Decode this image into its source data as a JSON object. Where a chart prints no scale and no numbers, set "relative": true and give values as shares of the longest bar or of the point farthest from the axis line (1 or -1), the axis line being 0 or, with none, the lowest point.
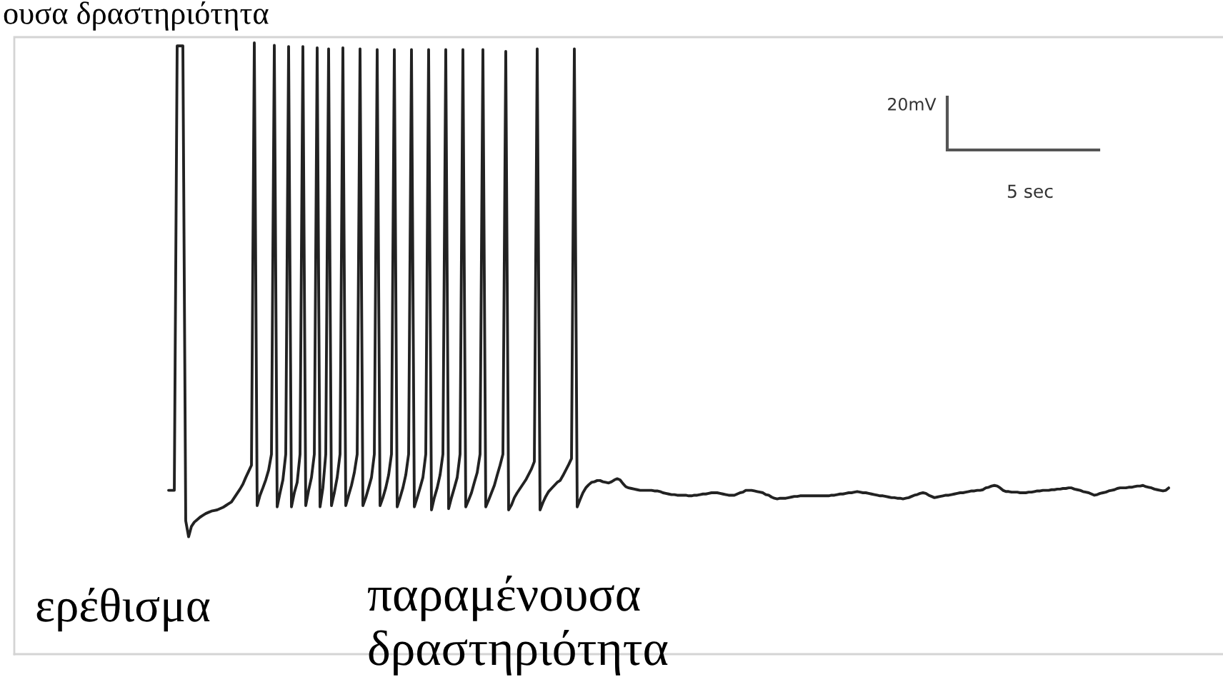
{
  "chart_data": {
    "type": "line",
    "relative": true,
    "categories": [
      null,
      null,
      null,
      null,
      null,
      null,
      null,
      null,
      null,
      null,
      null,
      null,
      null,
      null,
      null,
      null,
      null,
      null,
      null,
      null,
      null,
      null,
      null,
      null,
      null,
      null,
      null,
      null,
      null,
      null,
      null,
      null,
      null,
      null,
      null,
      null,
      null,
      null,
      null,
      null,
      null,
      null,
      null,
      null,
      null,
      null,
      null,
      null,
      null,
      null,
      null,
      null,
      null,
      null,
      null,
      null,
      null,
      null,
      null,
      null,
      null,
      null,
      null,
      null,
      null,
      null,
      null,
      null,
      null,
      null,
      null,
      null,
      null,
      null,
      null,
      null,
      null,
      null,
      null,
      null,
      null,
      null,
      null,
      null,
      null,
      null,
      null,
      null,
      null,
      null,
      null,
      null,
      null,
      null,
      null,
      null,
      null,
      null,
      null,
      null,
      null,
      null,
      null,
      null,
      null,
      null,
      null,
      null,
      null,
      null,
      null,
      null,
      null,
      null,
      null,
      null,
      null,
      null,
      null,
      null,
      null,
      null,
      null,
      null,
      null,
      null,
      null,
      null,
      null,
      null,
      null,
      null,
      null,
      null,
      null,
      null,
      null,
      null,
      null,
      null,
      null,
      null,
      null,
      null,
      null,
      null,
      null,
      null,
      null,
      null,
      null,
      null,
      null,
      null,
      null,
      null,
      null,
      null,
      null,
      null,
      null,
      null,
      null,
      null,
      null,
      null,
      null,
      null,
      null,
      null,
      null,
      null,
      null,
      null,
      null,
      null,
      null,
      null,
      null,
      null,
      null,
      null,
      null,
      null,
      null,
      null,
      null,
      null,
      null,
      null,
      null,
      null,
      null,
      null,
      null,
      null,
      null,
      null,
      null,
      null,
      null,
      null,
      null,
      null,
      null,
      null,
      null,
      null,
      null,
      null,
      null,
      null,
      null,
      null,
      null,
      null,
      null,
      null,
      null,
      null,
      null,
      null,
      null,
      null,
      null,
      null,
      null,
      null,
      null,
      null,
      null,
      null,
      null,
      null,
      null,
      null,
      null,
      null,
      null,
      null,
      null,
      null,
      null,
      null,
      null,
      null,
      null,
      null,
      null,
      null,
      null,
      null,
      null,
      null,
      null,
      null,
      null,
      null,
      null,
      null,
      null,
      null,
      null,
      null,
      null,
      null,
      null,
      null,
      null,
      null,
      null,
      null,
      null,
      null,
      null,
      null,
      null,
      null,
      null,
      null,
      null,
      null,
      null,
      null,
      null,
      null,
      null,
      null,
      null,
      null,
      null,
      null,
      null,
      null,
      null,
      null,
      null,
      null,
      null,
      null,
      null,
      null,
      null,
      null,
      null,
      null,
      null,
      null,
      null,
      null,
      null,
      null,
      null,
      null,
      null,
      null,
      null,
      null,
      null,
      null,
      null,
      null,
      null,
      null,
      null,
      null,
      null,
      null,
      null,
      null,
      null,
      null,
      null,
      null,
      null,
      null,
      null,
      null,
      null,
      null,
      null,
      null,
      null,
      null,
      null,
      null,
      null,
      null,
      null,
      null,
      null
    ],
    "series": [
      {
        "color": "#222222",
        "values": [
          0.268,
          0.268,
          0.268,
          0.995,
          0.995,
          0.995,
          0.218,
          0.192,
          0.209,
          0.216,
          0.22,
          0.224,
          0.227,
          0.23,
          0.232,
          0.234,
          0.235,
          0.236,
          0.238,
          0.24,
          0.243,
          0.246,
          0.249,
          0.256,
          0.263,
          0.27,
          0.278,
          0.289,
          0.299,
          0.309,
          1.0,
          0.243,
          0.26,
          0.272,
          0.285,
          0.301,
          0.327,
          0.996,
          0.241,
          0.264,
          0.285,
          0.327,
          0.994,
          0.241,
          0.264,
          0.281,
          0.327,
          0.994,
          0.243,
          0.268,
          0.289,
          0.327,
          0.992,
          0.241,
          0.272,
          0.327,
          0.99,
          0.243,
          0.264,
          0.289,
          0.327,
          0.992,
          0.243,
          0.26,
          0.276,
          0.297,
          0.327,
          0.99,
          0.243,
          0.256,
          0.272,
          0.289,
          0.327,
          0.989,
          0.243,
          0.256,
          0.272,
          0.293,
          0.327,
          0.989,
          0.241,
          0.256,
          0.272,
          0.293,
          0.327,
          0.989,
          0.241,
          0.256,
          0.272,
          0.289,
          0.327,
          0.989,
          0.236,
          0.256,
          0.272,
          0.293,
          0.327,
          0.989,
          0.238,
          0.256,
          0.272,
          0.289,
          0.327,
          0.989,
          0.241,
          0.252,
          0.264,
          0.281,
          0.297,
          0.327,
          0.989,
          0.241,
          0.252,
          0.264,
          0.276,
          0.293,
          0.309,
          0.327,
          0.986,
          0.236,
          0.244,
          0.256,
          0.264,
          0.271,
          0.278,
          0.285,
          0.294,
          0.303,
          0.315,
          0.99,
          0.236,
          0.248,
          0.258,
          0.266,
          0.271,
          0.276,
          0.281,
          0.284,
          0.292,
          0.301,
          0.31,
          0.32,
          0.99,
          0.241,
          0.253,
          0.264,
          0.272,
          0.277,
          0.281,
          0.282,
          0.284,
          0.284,
          0.282,
          0.281,
          0.28,
          0.282,
          0.285,
          0.287,
          0.285,
          0.279,
          0.274,
          0.272,
          0.271,
          0.27,
          0.269,
          0.268,
          0.268,
          0.268,
          0.268,
          0.268,
          0.267,
          0.267,
          0.266,
          0.264,
          0.263,
          0.262,
          0.261,
          0.261,
          0.26,
          0.26,
          0.26,
          0.26,
          0.259,
          0.259,
          0.26,
          0.26,
          0.261,
          0.262,
          0.262,
          0.263,
          0.264,
          0.264,
          0.264,
          0.263,
          0.262,
          0.261,
          0.26,
          0.26,
          0.26,
          0.262,
          0.264,
          0.265,
          0.268,
          0.268,
          0.268,
          0.267,
          0.266,
          0.265,
          0.264,
          0.261,
          0.26,
          0.257,
          0.255,
          0.254,
          0.255,
          0.255,
          0.255,
          0.256,
          0.257,
          0.258,
          0.258,
          0.259,
          0.259,
          0.259,
          0.259,
          0.259,
          0.259,
          0.259,
          0.259,
          0.259,
          0.259,
          0.259,
          0.26,
          0.26,
          0.261,
          0.262,
          0.262,
          0.263,
          0.264,
          0.264,
          0.265,
          0.266,
          0.265,
          0.264,
          0.264,
          0.263,
          0.262,
          0.261,
          0.26,
          0.259,
          0.259,
          0.258,
          0.257,
          0.256,
          0.256,
          0.255,
          0.255,
          0.254,
          0.255,
          0.256,
          0.258,
          0.26,
          0.261,
          0.263,
          0.264,
          0.263,
          0.26,
          0.258,
          0.256,
          0.257,
          0.258,
          0.259,
          0.26,
          0.26,
          0.261,
          0.262,
          0.263,
          0.264,
          0.264,
          0.265,
          0.266,
          0.267,
          0.267,
          0.268,
          0.268,
          0.269,
          0.272,
          0.273,
          0.275,
          0.276,
          0.275,
          0.272,
          0.268,
          0.266,
          0.266,
          0.265,
          0.265,
          0.265,
          0.264,
          0.264,
          0.264,
          0.265,
          0.265,
          0.266,
          0.267,
          0.267,
          0.268,
          0.268,
          0.268,
          0.269,
          0.269,
          0.27,
          0.27,
          0.271,
          0.271,
          0.272,
          0.272,
          0.27,
          0.269,
          0.268,
          0.266,
          0.265,
          0.264,
          0.262,
          0.26,
          0.261,
          0.263,
          0.264,
          0.265,
          0.267,
          0.268,
          0.269,
          0.271,
          0.272,
          0.272,
          0.272,
          0.273,
          0.273,
          0.274,
          0.275,
          0.275,
          0.276,
          0.274,
          0.273,
          0.272,
          0.27,
          0.269,
          0.268,
          0.267,
          0.268,
          0.272
        ]
      }
    ],
    "line_style": "solid",
    "annotations": [
      "ουσα δραστηριότητα",
      "ερέθισμα",
      "παραμένουσα\nδραστηριότητα",
      "20mV",
      "5 sec"
    ]
  }
}
